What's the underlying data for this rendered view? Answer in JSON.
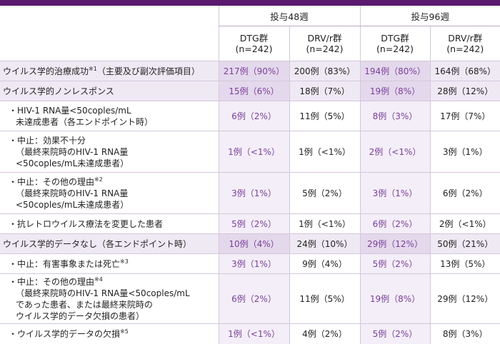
{
  "header": {
    "week48": "投与48週",
    "week96": "投与96週",
    "arms": [
      {
        "name": "DTG群",
        "n": "(n=242)"
      },
      {
        "name": "DRV/r群",
        "n": "(n=242)"
      },
      {
        "name": "DTG群",
        "n": "(n=242)"
      },
      {
        "name": "DRV/r群",
        "n": "(n=242)"
      }
    ]
  },
  "rows": [
    {
      "major": true,
      "height": 28,
      "lines": [
        "ウイルス学的治療成功"
      ],
      "sup": "※1",
      "after_sup": "（主要及び副次評価項目）",
      "values": [
        "217例（90%）",
        "200例（83%）",
        "194例（80%）",
        "164例（68%）"
      ]
    },
    {
      "major": true,
      "height": 28,
      "lines": [
        "ウイルス学的ノンレスポンス"
      ],
      "values": [
        "15例（6%）",
        "18例（7%）",
        "19例（8%）",
        "28例（12%）"
      ]
    },
    {
      "major": false,
      "height": 42,
      "lines": [
        "・HIV-1 RNA量<50coples/mL",
        "未達成患者（各エンドポイント時）"
      ],
      "values": [
        "6例（2%）",
        "11例（5%）",
        "8例（3%）",
        "17例（7%）"
      ]
    },
    {
      "major": false,
      "height": 58,
      "lines": [
        "・中止：効果不十分",
        "（最終来院時のHIV-1 RNA量",
        "<50coples/mL未達成患者）"
      ],
      "values": [
        "1例（<1%）",
        "1例（<1%）",
        "2例（<1%）",
        "3例（1%）"
      ]
    },
    {
      "major": false,
      "height": 58,
      "lines": [
        "・中止：その他の理由",
        "（最終来院時のHIV-1 RNA量",
        "<50coples/mL未達成患者）"
      ],
      "sup": "※2",
      "values": [
        "3例（1%）",
        "5例（2%）",
        "3例（1%）",
        "6例（2%）"
      ]
    },
    {
      "major": false,
      "height": 28,
      "lines": [
        "・抗レトロウイルス療法を変更した患者"
      ],
      "values": [
        "5例（2%）",
        "1例（<1%）",
        "6例（2%）",
        "2例（<1%）"
      ]
    },
    {
      "major": true,
      "height": 28,
      "lines": [
        "ウイルス学的データなし（各エンドポイント時）"
      ],
      "values": [
        "10例（4%）",
        "24例（10%）",
        "29例（12%）",
        "50例（21%）"
      ]
    },
    {
      "major": false,
      "height": 28,
      "lines": [
        "・中止：有害事象または死亡"
      ],
      "sup": "※3",
      "values": [
        "3例（1%）",
        "9例（4%）",
        "5例（2%）",
        "13例（5%）"
      ]
    },
    {
      "major": false,
      "height": 70,
      "lines": [
        "・中止：その他の理由",
        "（最終来院時のHIV-1 RNA量<50coples/mL",
        "であった患者、または最終来院時の",
        "ウイルス学的データ欠損の患者）"
      ],
      "sup": "※4",
      "values": [
        "6例（2%）",
        "11例（5%）",
        "19例（8%）",
        "29例（12%）"
      ]
    },
    {
      "major": false,
      "height": 28,
      "lines": [
        "・ウイルス学的データの欠損"
      ],
      "sup": "※5",
      "values": [
        "1例（<1%）",
        "4例（2%）",
        "5例（2%）",
        "8例（3%）"
      ]
    }
  ]
}
